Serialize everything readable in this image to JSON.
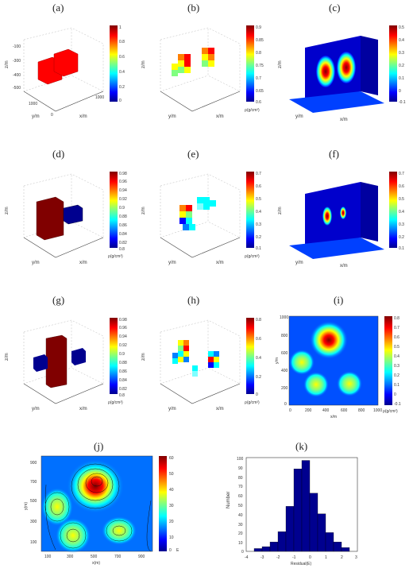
{
  "panel_labels": [
    "(a)",
    "(b)",
    "(c)",
    "(d)",
    "(e)",
    "(f)",
    "(g)",
    "(h)",
    "(i)",
    "(j)",
    "(k)"
  ],
  "colormap": [
    "#00008f",
    "#0000ff",
    "#0080ff",
    "#00ffff",
    "#80ff80",
    "#ffff00",
    "#ff8000",
    "#ff0000",
    "#800000"
  ],
  "axes3d": {
    "x_label": "x/m",
    "y_label": "y/m",
    "z_label": "z/m",
    "x_ticks": [
      "0",
      "200",
      "400",
      "600",
      "800",
      "1000"
    ],
    "y_ticks": [
      "0",
      "200",
      "400",
      "600",
      "800",
      "1000"
    ],
    "z_ticks": [
      "-100",
      "-200",
      "-300",
      "-400",
      "-500"
    ]
  },
  "density_unit": "ρ(g/cm³)",
  "chart_data": [
    {
      "panel": "a",
      "type": "heatmap",
      "kind": "3d-blocks",
      "colorbar_ticks": [
        "1",
        "0.9",
        "0.8",
        "0.7",
        "0.6",
        "0.5",
        "0.4",
        "0.3",
        "0.2",
        "0.1",
        "0"
      ],
      "blocks": [
        {
          "x": 400,
          "y": 300,
          "value": 1.0
        },
        {
          "x": 600,
          "y": 300,
          "value": 1.0
        }
      ]
    },
    {
      "panel": "b",
      "type": "heatmap",
      "kind": "3d-blocks",
      "colorbar_ticks": [
        "0.9",
        "0.85",
        "0.8",
        "0.75",
        "0.7",
        "0.65",
        "0.6"
      ],
      "blocks": [
        {
          "x": 300,
          "y": 300,
          "value": 0.8
        },
        {
          "x": 600,
          "y": 300,
          "value": 0.8
        }
      ]
    },
    {
      "panel": "c",
      "type": "heatmap",
      "kind": "3d-slices",
      "colorbar_ticks": [
        "0.5",
        "0.4",
        "0.3",
        "0.2",
        "0.1",
        "0",
        "-0.1"
      ]
    },
    {
      "panel": "d",
      "type": "heatmap",
      "kind": "3d-blocks",
      "colorbar_ticks": [
        "0.98",
        "0.96",
        "0.94",
        "0.92",
        "0.9",
        "0.88",
        "0.86",
        "0.84",
        "0.82",
        "0.8"
      ],
      "blocks": [
        {
          "x": 400,
          "y": 300,
          "value": 0.98
        },
        {
          "x": 600,
          "y": 300,
          "value": 0.8
        }
      ]
    },
    {
      "panel": "e",
      "type": "heatmap",
      "kind": "3d-blocks",
      "colorbar_ticks": [
        "0.7",
        "0.6",
        "0.5",
        "0.4",
        "0.3",
        "0.2",
        "0.1"
      ]
    },
    {
      "panel": "f",
      "type": "heatmap",
      "kind": "3d-slices",
      "colorbar_ticks": [
        "0.7",
        "0.6",
        "0.5",
        "0.4",
        "0.3",
        "0.2",
        "0.1"
      ]
    },
    {
      "panel": "g",
      "type": "heatmap",
      "kind": "3d-blocks",
      "colorbar_ticks": [
        "0.98",
        "0.96",
        "0.94",
        "0.92",
        "0.9",
        "0.88",
        "0.86",
        "0.84",
        "0.82",
        "0.8"
      ]
    },
    {
      "panel": "h",
      "type": "heatmap",
      "kind": "3d-blocks",
      "colorbar_ticks": [
        "0.8",
        "0.6",
        "0.4",
        "0.2",
        "0"
      ]
    },
    {
      "panel": "i",
      "type": "heatmap",
      "kind": "2d-map",
      "colorbar_ticks": [
        "0.8",
        "0.7",
        "0.6",
        "0.5",
        "0.4",
        "0.3",
        "0.2",
        "0.1",
        "0",
        "-0.1"
      ],
      "xlabel": "x/m",
      "ylabel": "y/m",
      "x_ticks": [
        "0",
        "200",
        "400",
        "600",
        "800",
        "1000"
      ],
      "y_ticks": [
        "1000",
        "800",
        "600",
        "400",
        "200",
        "0"
      ],
      "anomalies": [
        {
          "x": 450,
          "y": 750,
          "value": 0.8
        },
        {
          "x": 150,
          "y": 500,
          "value": 0.5
        },
        {
          "x": 300,
          "y": 250,
          "value": 0.45
        },
        {
          "x": 700,
          "y": 250,
          "value": 0.45
        }
      ]
    },
    {
      "panel": "j",
      "type": "heatmap",
      "kind": "2d-contour",
      "colorbar_ticks": [
        "60",
        "50",
        "40",
        "30",
        "20",
        "10",
        "0"
      ],
      "colorbar_unit": "E",
      "xlabel": "x(m)",
      "ylabel": "y(m)",
      "x_ticks": [
        "100",
        "300",
        "500",
        "700",
        "900"
      ],
      "y_ticks": [
        "900",
        "700",
        "500",
        "300",
        "100"
      ],
      "anomalies": [
        {
          "x": 500,
          "y": 750,
          "value": 60
        },
        {
          "x": 200,
          "y": 500,
          "value": 35
        },
        {
          "x": 350,
          "y": 200,
          "value": 30
        },
        {
          "x": 750,
          "y": 250,
          "value": 35
        }
      ]
    },
    {
      "panel": "k",
      "type": "bar",
      "xlabel": "Residual(E)",
      "ylabel": "Number",
      "x_ticks": [
        "-4",
        "-3",
        "-2",
        "-1",
        "0",
        "1",
        "2",
        "3"
      ],
      "y_ticks": [
        "100",
        "90",
        "80",
        "70",
        "60",
        "50",
        "40",
        "30",
        "20",
        "10",
        "0"
      ],
      "xlim": [
        -4,
        3
      ],
      "ylim": [
        0,
        100
      ],
      "bins": [
        -3.5,
        -3,
        -2.5,
        -2,
        -1.5,
        -1,
        -0.5,
        0,
        0.5,
        1,
        1.5,
        2
      ],
      "values": [
        3,
        5,
        10,
        21,
        48,
        88,
        97,
        62,
        40,
        20,
        10,
        4
      ]
    }
  ]
}
